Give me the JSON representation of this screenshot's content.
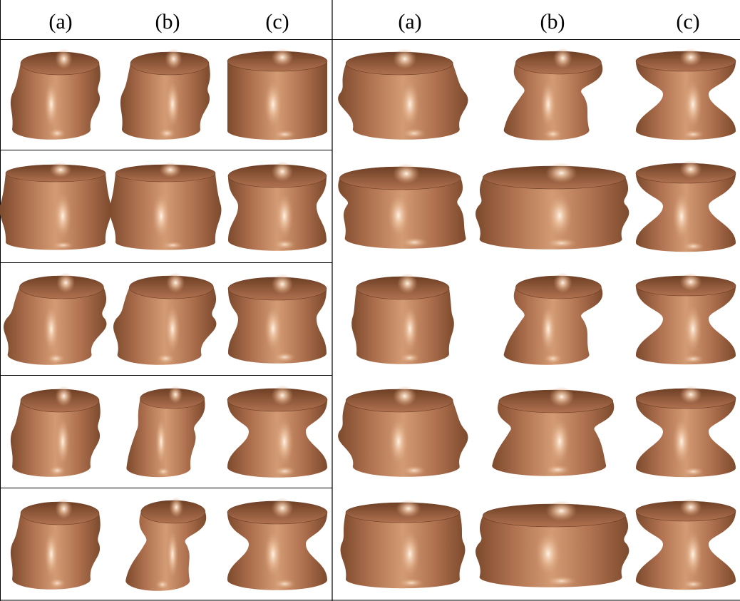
{
  "figure": {
    "left_header": [
      "(a)",
      "(b)",
      "(c)"
    ],
    "right_header": [
      "(a)",
      "(b)",
      "(c)"
    ],
    "colors": {
      "surface_base": "#b87a55",
      "surface_dark": "#7d4a2d",
      "surface_highlight": "#fff3e4",
      "inside_dark": "#8a5535",
      "grid": "#000000"
    },
    "rows": 5,
    "panels": [
      {
        "panel": "left",
        "row": 1,
        "col": "a",
        "shape": "tilted-cylinder"
      },
      {
        "panel": "left",
        "row": 1,
        "col": "b",
        "shape": "tilted-cylinder"
      },
      {
        "panel": "left",
        "row": 1,
        "col": "c",
        "shape": "cylinder"
      },
      {
        "panel": "left",
        "row": 2,
        "col": "a",
        "shape": "barrel"
      },
      {
        "panel": "left",
        "row": 2,
        "col": "b",
        "shape": "barrel"
      },
      {
        "panel": "left",
        "row": 2,
        "col": "c",
        "shape": "waisted-cylinder"
      },
      {
        "panel": "left",
        "row": 3,
        "col": "a",
        "shape": "crumpled-cylinder"
      },
      {
        "panel": "left",
        "row": 3,
        "col": "b",
        "shape": "crumpled-cylinder"
      },
      {
        "panel": "left",
        "row": 3,
        "col": "c",
        "shape": "waisted-cylinder"
      },
      {
        "panel": "left",
        "row": 4,
        "col": "a",
        "shape": "tilted-cylinder"
      },
      {
        "panel": "left",
        "row": 4,
        "col": "b",
        "shape": "slanted-cylinder"
      },
      {
        "panel": "left",
        "row": 4,
        "col": "c",
        "shape": "flared-cylinder"
      },
      {
        "panel": "left",
        "row": 5,
        "col": "a",
        "shape": "tilted-cylinder"
      },
      {
        "panel": "left",
        "row": 5,
        "col": "b",
        "shape": "twisted-cylinder"
      },
      {
        "panel": "left",
        "row": 5,
        "col": "c",
        "shape": "flared-cylinder"
      },
      {
        "panel": "right",
        "row": 1,
        "col": "a",
        "shape": "bulged-vase"
      },
      {
        "panel": "right",
        "row": 1,
        "col": "b",
        "shape": "twisted-vase"
      },
      {
        "panel": "right",
        "row": 1,
        "col": "c",
        "shape": "hyperboloid"
      },
      {
        "panel": "right",
        "row": 2,
        "col": "a",
        "shape": "wrinkled-wide-cylinder"
      },
      {
        "panel": "right",
        "row": 2,
        "col": "b",
        "shape": "folded-wide-cylinder"
      },
      {
        "panel": "right",
        "row": 2,
        "col": "c",
        "shape": "hyperboloid"
      },
      {
        "panel": "right",
        "row": 3,
        "col": "a",
        "shape": "cup"
      },
      {
        "panel": "right",
        "row": 3,
        "col": "b",
        "shape": "twisted-vase"
      },
      {
        "panel": "right",
        "row": 3,
        "col": "c",
        "shape": "hyperboloid"
      },
      {
        "panel": "right",
        "row": 4,
        "col": "a",
        "shape": "bulged-vase"
      },
      {
        "panel": "right",
        "row": 4,
        "col": "b",
        "shape": "folded-vase"
      },
      {
        "panel": "right",
        "row": 4,
        "col": "c",
        "shape": "hyperboloid"
      },
      {
        "panel": "right",
        "row": 5,
        "col": "a",
        "shape": "wide-barrel"
      },
      {
        "panel": "right",
        "row": 5,
        "col": "b",
        "shape": "folded-wide-cylinder"
      },
      {
        "panel": "right",
        "row": 5,
        "col": "c",
        "shape": "hyperboloid"
      }
    ]
  }
}
